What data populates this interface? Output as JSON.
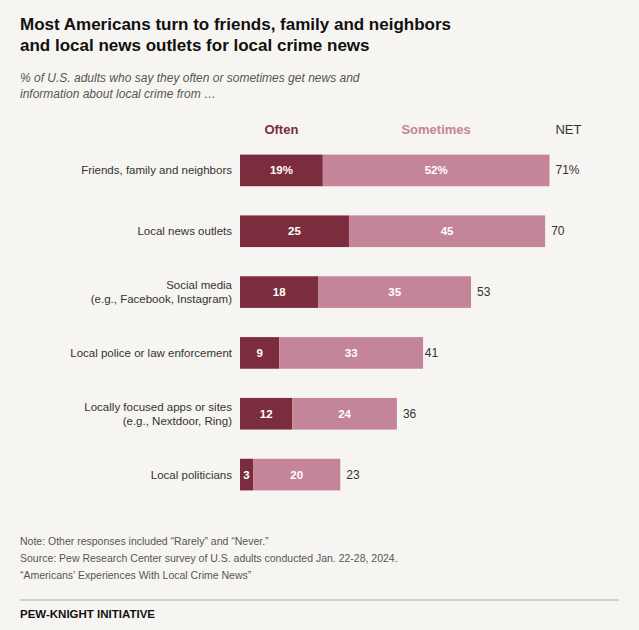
{
  "chart_data": {
    "type": "bar",
    "orientation": "horizontal",
    "stacked": true,
    "data_labels": true,
    "tick_labels": false,
    "grid": false,
    "title": "Most Americans turn to friends, family and neighbors\nand local news outlets for local crime news",
    "subtitle": "% of U.S. adults who say they often or sometimes get news and\ninformation about local crime from …",
    "categories": [
      "Friends, family and neighbors",
      "Local news outlets",
      "Social media\n(e.g., Facebook, Instagram)",
      "Local police or law enforcement",
      "Locally focused apps or sites\n(e.g., Nextdoor, Ring)",
      "Local politicians"
    ],
    "series": [
      {
        "name": "Often",
        "color": "#7B2D3E",
        "values": [
          19,
          25,
          18,
          9,
          12,
          3
        ],
        "value_labels": [
          "19%",
          "25",
          "18",
          "9",
          "12",
          "3"
        ]
      },
      {
        "name": "Sometimes",
        "color": "#C4849A",
        "values": [
          52,
          45,
          35,
          33,
          24,
          20
        ],
        "value_labels": [
          "52%",
          "45",
          "35",
          "33",
          "24",
          "20"
        ]
      }
    ],
    "net": {
      "name": "NET",
      "values": [
        71,
        70,
        53,
        41,
        36,
        23
      ],
      "value_labels": [
        "71%",
        "70",
        "53",
        "41",
        "36",
        "23"
      ]
    },
    "xlim": [
      0,
      78
    ],
    "notes": [
      "Note: Other responses included “Rarely” and “Never.”",
      "Source: Pew Research Center survey of U.S. adults conducted Jan. 22-28, 2024.",
      "“Americans’ Experiences With Local Crime News”"
    ],
    "footer": "PEW-KNIGHT INITIATIVE"
  }
}
